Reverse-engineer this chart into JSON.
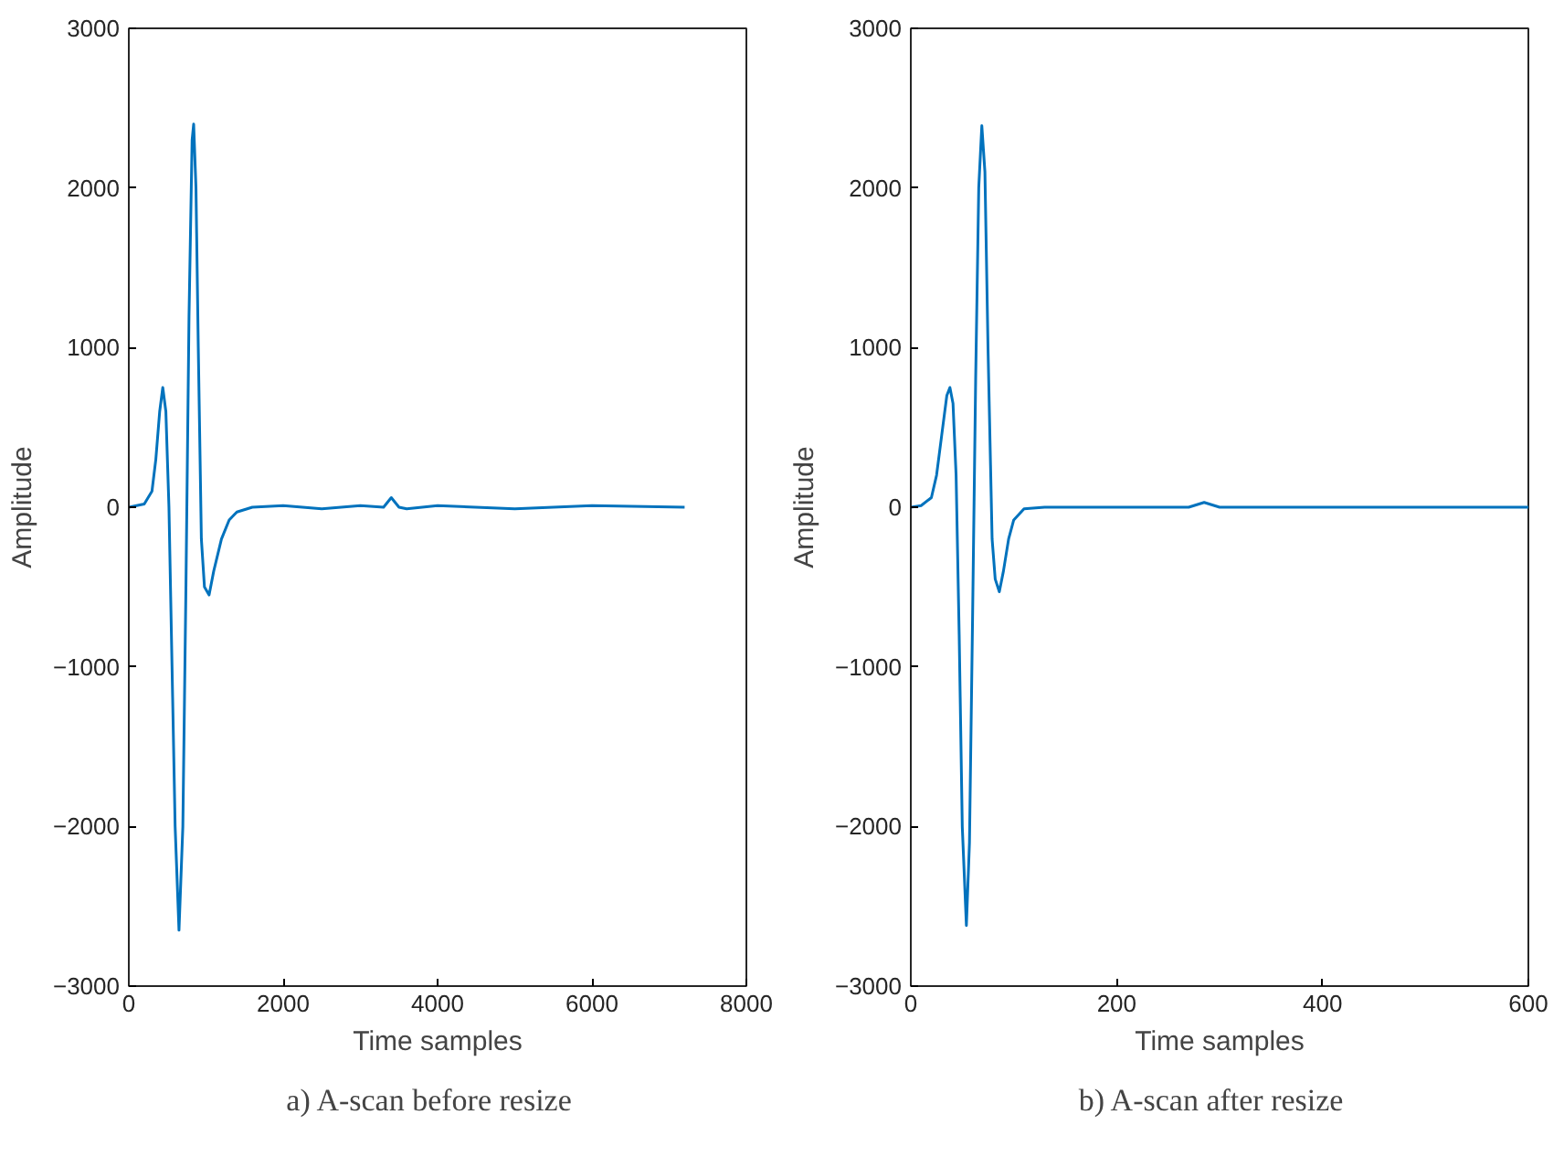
{
  "chart_data": [
    {
      "type": "line",
      "xlabel": "Time samples",
      "ylabel": "Amplitude",
      "xlim": [
        0,
        8000
      ],
      "ylim": [
        -3000,
        3000
      ],
      "xticks": [
        0,
        2000,
        4000,
        6000,
        8000
      ],
      "yticks": [
        -3000,
        -2000,
        -1000,
        0,
        1000,
        2000,
        3000
      ],
      "grid": false,
      "annotations": [
        "a)   A-scan before resize"
      ],
      "series": [
        {
          "color": "#0072bd",
          "x": [
            0,
            100,
            200,
            300,
            350,
            400,
            440,
            480,
            520,
            560,
            600,
            650,
            700,
            740,
            780,
            820,
            840,
            870,
            900,
            940,
            980,
            1040,
            1100,
            1200,
            1300,
            1400,
            1600,
            2000,
            2500,
            3000,
            3300,
            3400,
            3500,
            3600,
            4000,
            5000,
            6000,
            7200
          ],
          "values": [
            0,
            10,
            20,
            100,
            300,
            600,
            750,
            600,
            0,
            -1000,
            -2000,
            -2650,
            -2000,
            -500,
            1200,
            2300,
            2400,
            2000,
            1000,
            -200,
            -500,
            -550,
            -400,
            -200,
            -80,
            -30,
            0,
            10,
            -10,
            10,
            0,
            60,
            0,
            -10,
            10,
            -10,
            10,
            0
          ]
        }
      ]
    },
    {
      "type": "line",
      "xlabel": "Time samples",
      "ylabel": "Amplitude",
      "xlim": [
        0,
        600
      ],
      "ylim": [
        -3000,
        3000
      ],
      "xticks": [
        0,
        200,
        400,
        600
      ],
      "yticks": [
        -3000,
        -2000,
        -1000,
        0,
        1000,
        2000,
        3000
      ],
      "grid": false,
      "annotations": [
        "b)   A-scan after resize"
      ],
      "series": [
        {
          "color": "#0072bd",
          "x": [
            0,
            10,
            20,
            25,
            30,
            35,
            38,
            41,
            44,
            47,
            50,
            54,
            57,
            60,
            63,
            66,
            69,
            72,
            75,
            79,
            82,
            86,
            90,
            95,
            100,
            110,
            130,
            200,
            270,
            285,
            300,
            400,
            500,
            600
          ],
          "values": [
            0,
            10,
            60,
            200,
            450,
            700,
            750,
            650,
            200,
            -800,
            -2000,
            -2620,
            -2100,
            -700,
            800,
            2000,
            2390,
            2100,
            1000,
            -200,
            -450,
            -530,
            -400,
            -200,
            -80,
            -10,
            0,
            0,
            0,
            30,
            0,
            0,
            0,
            0
          ]
        }
      ]
    }
  ]
}
